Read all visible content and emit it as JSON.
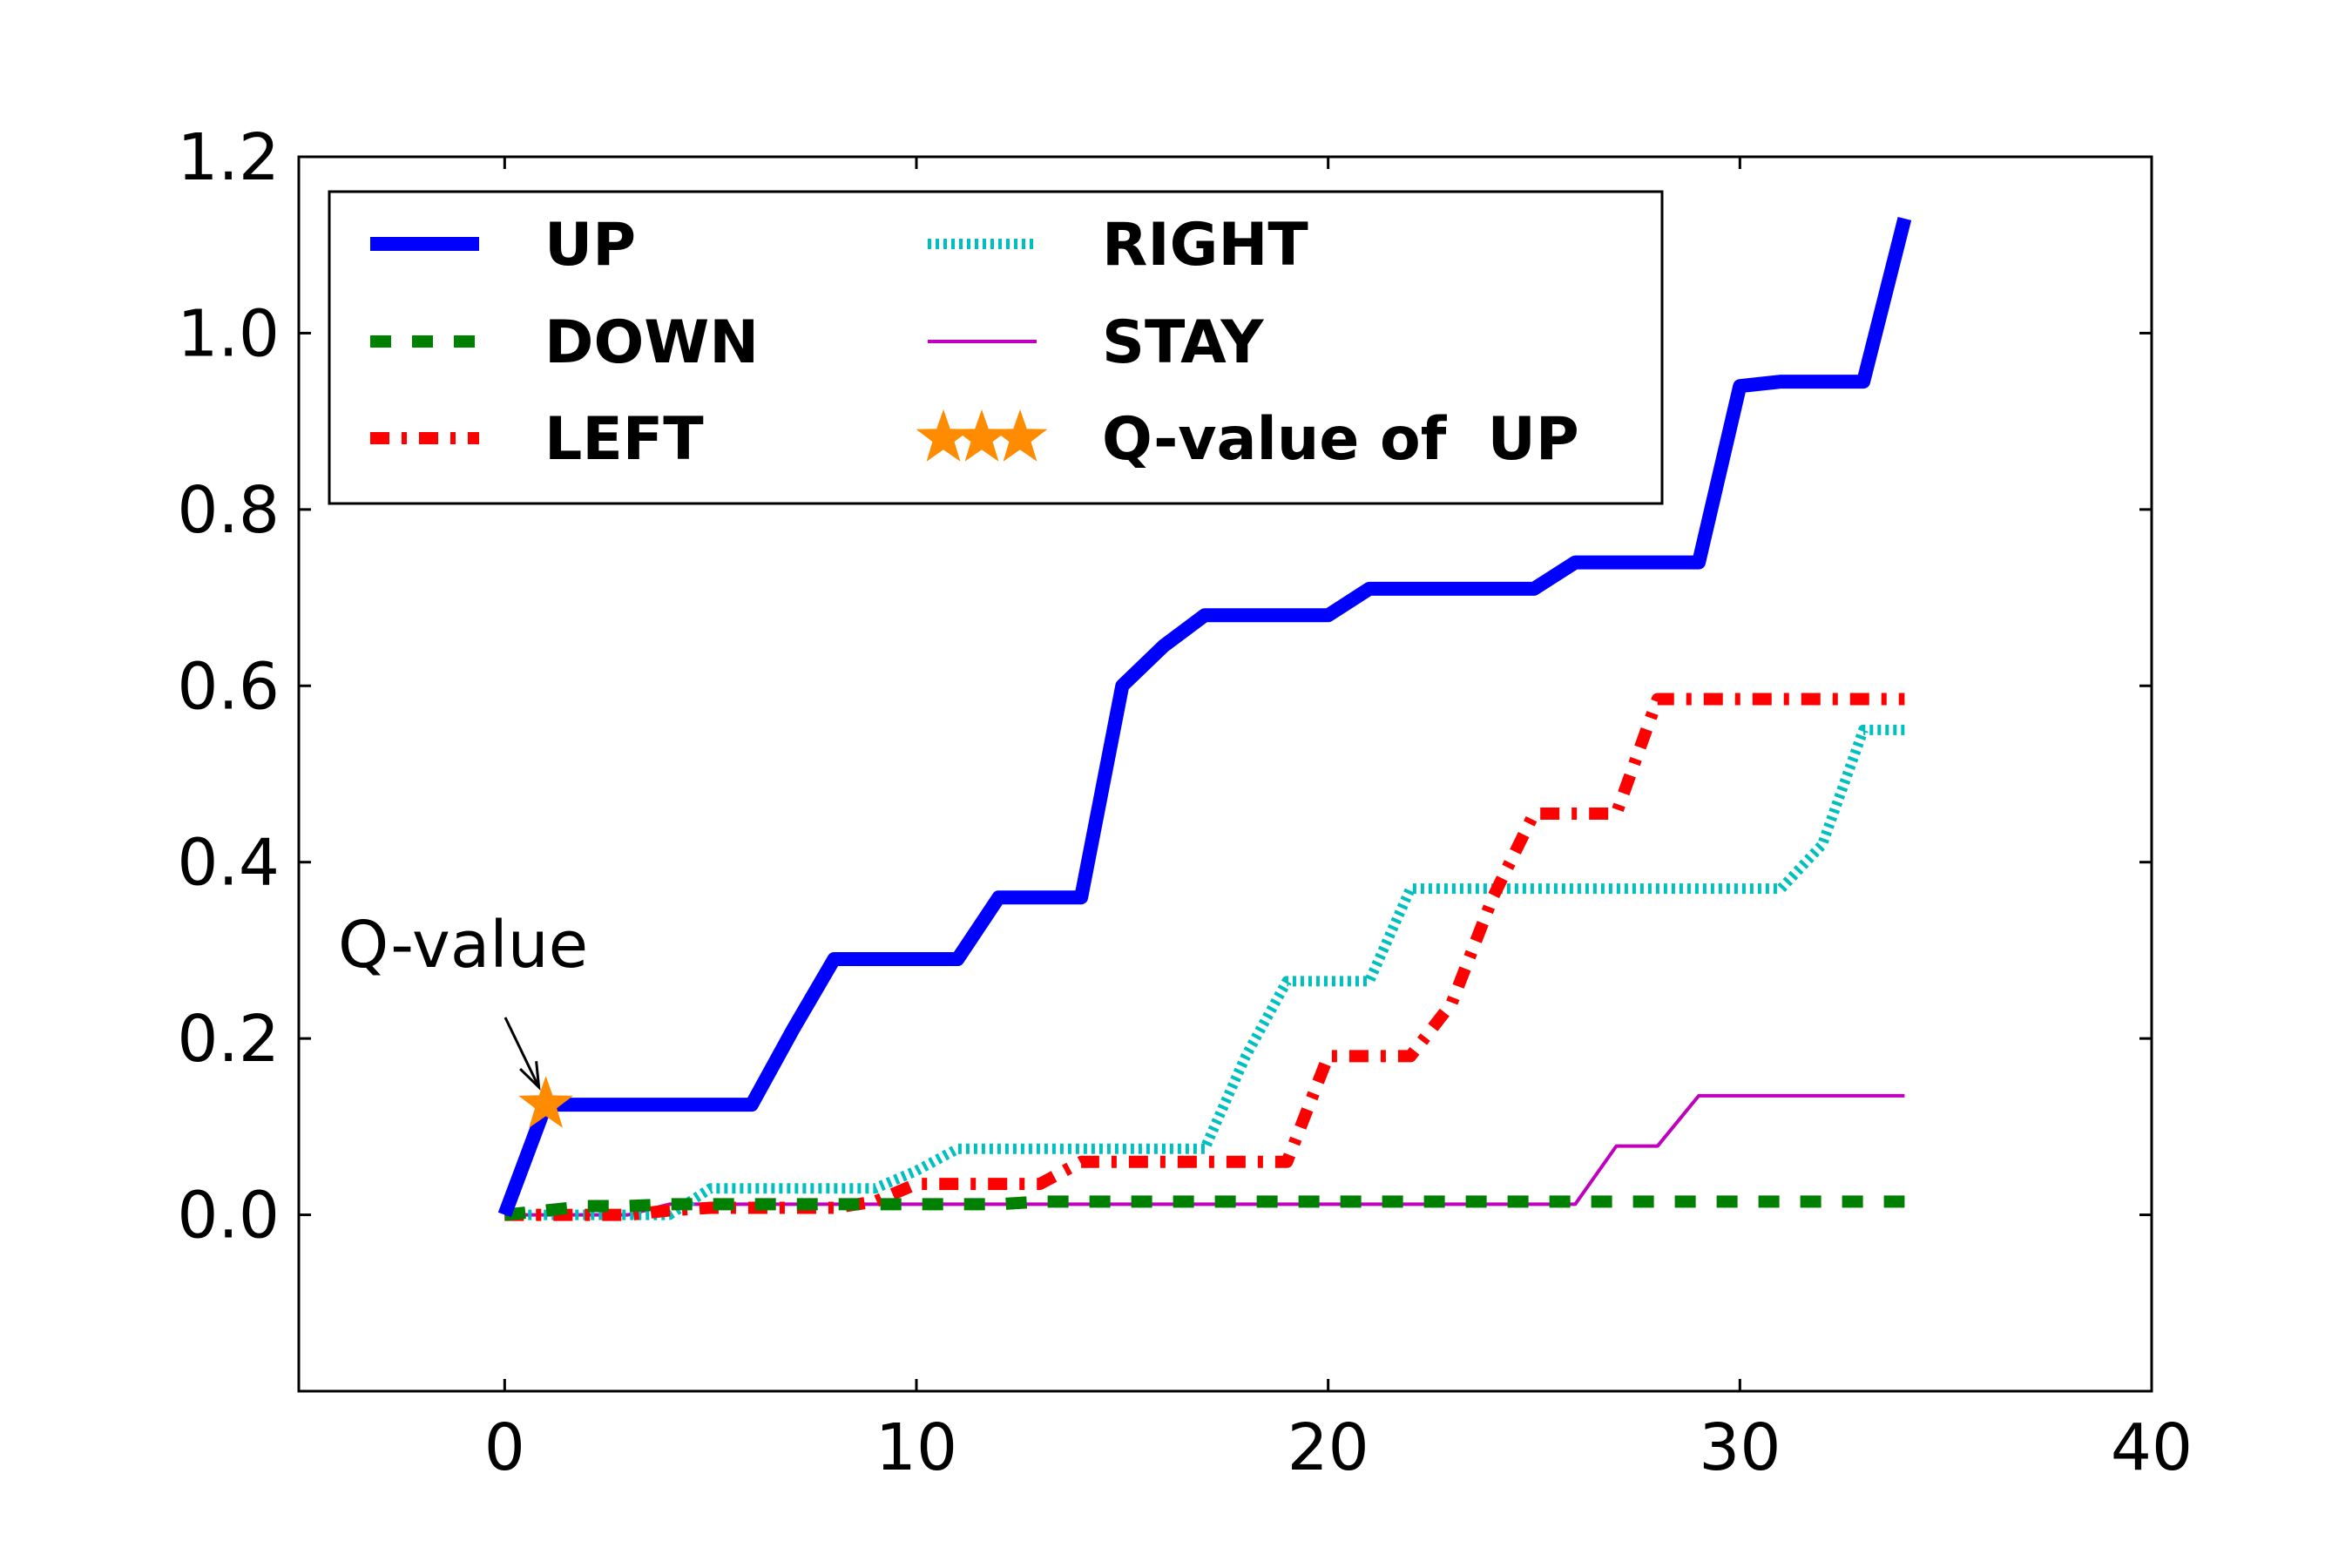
{
  "chart_data": {
    "type": "line",
    "title": "",
    "xlabel": "",
    "ylabel": "",
    "xlim": [
      -5,
      40
    ],
    "ylim": [
      -0.2,
      1.2
    ],
    "xticks": [
      "0",
      "10",
      "20",
      "30",
      "40"
    ],
    "yticks": [
      "0.0",
      "0.2",
      "0.4",
      "0.6",
      "0.8",
      "1.0",
      "1.2"
    ],
    "grid": false,
    "legend_position": "top-left",
    "legend_columns": 2,
    "series": [
      {
        "name": "UP",
        "color": "#0000ff",
        "style": "solid-thick",
        "x": [
          0,
          1,
          2,
          3,
          4,
          5,
          6,
          7,
          8,
          9,
          10,
          11,
          12,
          13,
          14,
          15,
          16,
          17,
          18,
          19,
          20,
          21,
          22,
          23,
          24,
          25,
          26,
          27,
          28,
          29,
          30,
          31,
          32,
          33,
          34
        ],
        "y": [
          0.0,
          0.125,
          0.125,
          0.125,
          0.125,
          0.125,
          0.125,
          0.21,
          0.29,
          0.29,
          0.29,
          0.29,
          0.36,
          0.36,
          0.36,
          0.6,
          0.645,
          0.68,
          0.68,
          0.68,
          0.68,
          0.71,
          0.71,
          0.71,
          0.71,
          0.71,
          0.74,
          0.74,
          0.74,
          0.74,
          0.94,
          0.945,
          0.945,
          0.945,
          1.13
        ]
      },
      {
        "name": "DOWN",
        "color": "#008000",
        "style": "dashed",
        "x": [
          0,
          1,
          2,
          3,
          4,
          5,
          6,
          7,
          8,
          9,
          10,
          11,
          12,
          13,
          14,
          15,
          16,
          17,
          18,
          19,
          20,
          21,
          22,
          23,
          24,
          25,
          26,
          27,
          28,
          29,
          30,
          31,
          32,
          33,
          34
        ],
        "y": [
          0.0,
          0.005,
          0.01,
          0.01,
          0.012,
          0.012,
          0.012,
          0.012,
          0.012,
          0.012,
          0.012,
          0.012,
          0.012,
          0.015,
          0.015,
          0.015,
          0.015,
          0.015,
          0.015,
          0.015,
          0.015,
          0.015,
          0.015,
          0.015,
          0.015,
          0.015,
          0.015,
          0.015,
          0.015,
          0.015,
          0.015,
          0.015,
          0.015,
          0.015,
          0.015
        ]
      },
      {
        "name": "LEFT",
        "color": "#ff0000",
        "style": "dash-dot-thick",
        "x": [
          0,
          1,
          2,
          3,
          4,
          5,
          6,
          7,
          8,
          9,
          10,
          11,
          12,
          13,
          14,
          15,
          16,
          17,
          18,
          19,
          20,
          21,
          22,
          23,
          24,
          25,
          26,
          27,
          28,
          29,
          30,
          31,
          32,
          33,
          34
        ],
        "y": [
          0.0,
          0.0,
          0.0,
          0.0,
          0.005,
          0.008,
          0.008,
          0.008,
          0.008,
          0.015,
          0.035,
          0.035,
          0.035,
          0.035,
          0.06,
          0.06,
          0.06,
          0.06,
          0.06,
          0.06,
          0.18,
          0.18,
          0.18,
          0.24,
          0.36,
          0.455,
          0.455,
          0.455,
          0.585,
          0.585,
          0.585,
          0.585,
          0.585,
          0.585,
          0.585
        ]
      },
      {
        "name": "RIGHT",
        "color": "#00bfbf",
        "style": "dotted",
        "x": [
          0,
          1,
          2,
          3,
          4,
          5,
          6,
          7,
          8,
          9,
          10,
          11,
          12,
          13,
          14,
          15,
          16,
          17,
          18,
          19,
          20,
          21,
          22,
          23,
          24,
          25,
          26,
          27,
          28,
          29,
          30,
          31,
          32,
          33,
          34
        ],
        "y": [
          0.0,
          0.0,
          0.0,
          0.0,
          0.0,
          0.03,
          0.03,
          0.03,
          0.03,
          0.03,
          0.05,
          0.075,
          0.075,
          0.075,
          0.075,
          0.075,
          0.075,
          0.075,
          0.18,
          0.265,
          0.265,
          0.265,
          0.37,
          0.37,
          0.37,
          0.37,
          0.37,
          0.37,
          0.37,
          0.37,
          0.37,
          0.37,
          0.42,
          0.55,
          0.55
        ]
      },
      {
        "name": "STAY",
        "color": "#bf00bf",
        "style": "solid-thin",
        "x": [
          0,
          1,
          2,
          3,
          4,
          5,
          6,
          7,
          8,
          9,
          10,
          11,
          12,
          13,
          14,
          15,
          16,
          17,
          18,
          19,
          20,
          21,
          22,
          23,
          24,
          25,
          26,
          27,
          28,
          29,
          30,
          31,
          32,
          33,
          34
        ],
        "y": [
          0.0,
          0.0,
          0.0,
          0.0,
          0.012,
          0.012,
          0.012,
          0.012,
          0.012,
          0.012,
          0.012,
          0.012,
          0.012,
          0.012,
          0.012,
          0.012,
          0.012,
          0.012,
          0.012,
          0.012,
          0.012,
          0.012,
          0.012,
          0.012,
          0.012,
          0.012,
          0.012,
          0.078,
          0.078,
          0.135,
          0.135,
          0.135,
          0.135,
          0.135,
          0.135
        ]
      }
    ],
    "markers": [
      {
        "name": "Q-value of  UP",
        "color": "#ff8c00",
        "shape": "star",
        "x": 1,
        "y": 0.125
      }
    ],
    "annotations": [
      {
        "text": "Q-value",
        "x": 1,
        "y": 0.125,
        "arrow": true
      }
    ]
  }
}
